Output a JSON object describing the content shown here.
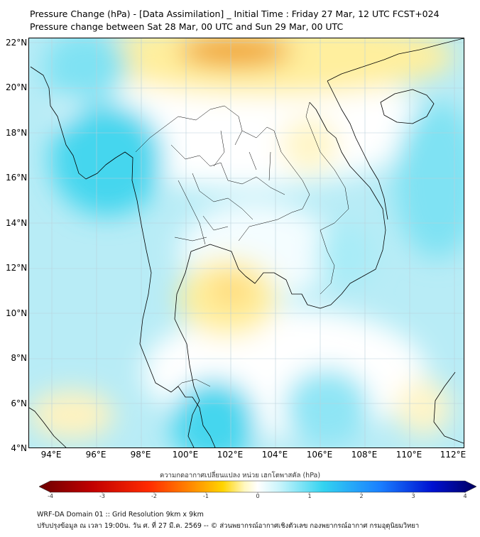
{
  "title": {
    "line1": "Pressure Change (hPa) - [Data Assimilation] _ Initial Time : Friday 27 Mar, 12 UTC FCST+024",
    "line2": "Pressure change between Sat 28 Mar, 00 UTC and Sun 29 Mar, 00 UTC"
  },
  "map": {
    "lat_labels": [
      "22°N",
      "20°N",
      "18°N",
      "16°N",
      "14°N",
      "12°N",
      "10°N",
      "8°N",
      "6°N",
      "4°N"
    ],
    "lon_labels": [
      "94°E",
      "96°E",
      "98°E",
      "100°E",
      "102°E",
      "104°E",
      "106°E",
      "108°E",
      "110°E",
      "112°E"
    ],
    "lat_range": [
      4,
      22.2
    ],
    "lon_range": [
      93,
      112.4
    ],
    "grid": true,
    "colors": {
      "negative_strong": "#f0a020",
      "negative_weak": "#ffef9e",
      "neutral": "#ffffff",
      "positive_weak": "#b8ecf6",
      "positive_strong": "#44d6ee",
      "coastline": "#000000",
      "grid": "#b9d0da"
    }
  },
  "colorbar": {
    "label": "ความกดอากาศเปลี่ยนแปลง หน่วย เฮกโตพาสคัล (hPa)",
    "ticks": [
      "-4",
      "-3",
      "-2",
      "-1",
      "0",
      "1",
      "2",
      "3",
      "4"
    ],
    "range": [
      -4,
      4
    ],
    "colors": [
      "#6b0000",
      "#c00000",
      "#ff2a00",
      "#ff8c00",
      "#ffd400",
      "#fff8c0",
      "#ffffff",
      "#c8f4fb",
      "#33d3f0",
      "#1a7fff",
      "#0010d0",
      "#000060"
    ]
  },
  "footer": {
    "line1": "WRF-DA Domain 01 :: Grid Resolution 9km x 9km",
    "line2": "ปรับปรุงข้อมูล ณ เวลา 19:00น. วัน ศ. ที่ 27 มี.ค. 2569 -- © ส่วนพยากรณ์อากาศเชิงตัวเลข กองพยากรณ์อากาศ กรมอุตุนิยมวิทยา"
  }
}
